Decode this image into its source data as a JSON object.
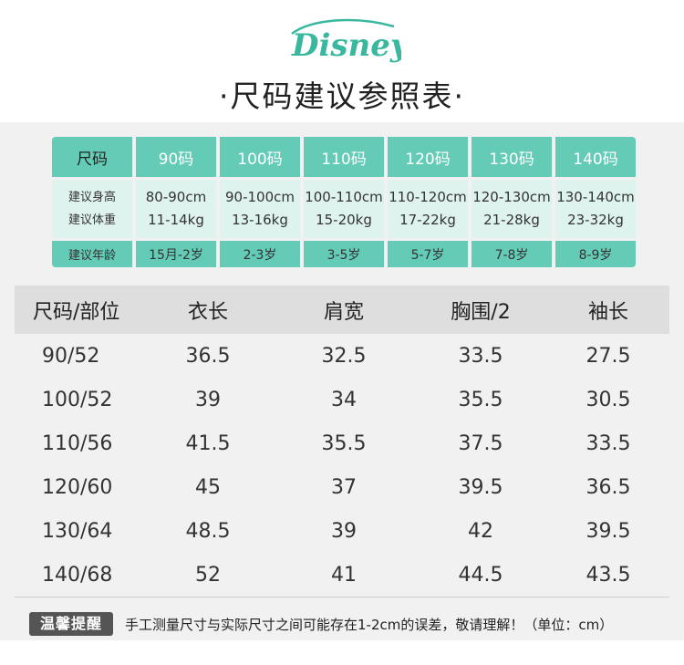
{
  "brand": {
    "logo_text": "Disney",
    "logo_color": "#39b89f"
  },
  "title": "·尺码建议参照表·",
  "recommendation": {
    "row_labels": {
      "size": "尺码",
      "height": "建议身高",
      "weight": "建议体重",
      "age": "建议年龄"
    },
    "columns": [
      {
        "size": "90码",
        "height": "80-90cm",
        "weight": "11-14kg",
        "age": "15月-2岁"
      },
      {
        "size": "100码",
        "height": "90-100cm",
        "weight": "13-16kg",
        "age": "2-3岁"
      },
      {
        "size": "110码",
        "height": "100-110cm",
        "weight": "15-20kg",
        "age": "3-5岁"
      },
      {
        "size": "120码",
        "height": "110-120cm",
        "weight": "17-22kg",
        "age": "5-7岁"
      },
      {
        "size": "130码",
        "height": "120-130cm",
        "weight": "21-28kg",
        "age": "7-8岁"
      },
      {
        "size": "140码",
        "height": "130-140cm",
        "weight": "23-32kg",
        "age": "8-9岁"
      }
    ],
    "colors": {
      "header": "#64cbb6",
      "body": "#dff3ee"
    }
  },
  "measurements": {
    "headers": [
      "尺码/部位",
      "衣长",
      "肩宽",
      "胸围/2",
      "袖长"
    ],
    "rows": [
      [
        "90/52",
        "36.5",
        "32.5",
        "33.5",
        "27.5"
      ],
      [
        "100/52",
        "39",
        "34",
        "35.5",
        "30.5"
      ],
      [
        "110/56",
        "41.5",
        "35.5",
        "37.5",
        "33.5"
      ],
      [
        "120/60",
        "45",
        "37",
        "39.5",
        "36.5"
      ],
      [
        "130/64",
        "48.5",
        "39",
        "42",
        "39.5"
      ],
      [
        "140/68",
        "52",
        "41",
        "44.5",
        "43.5"
      ]
    ]
  },
  "tip": {
    "badge": "温馨提醒",
    "text": "手工测量尺寸与实际尺寸之间可能存在1-2cm的误差，敬请理解！（单位：cm）"
  }
}
